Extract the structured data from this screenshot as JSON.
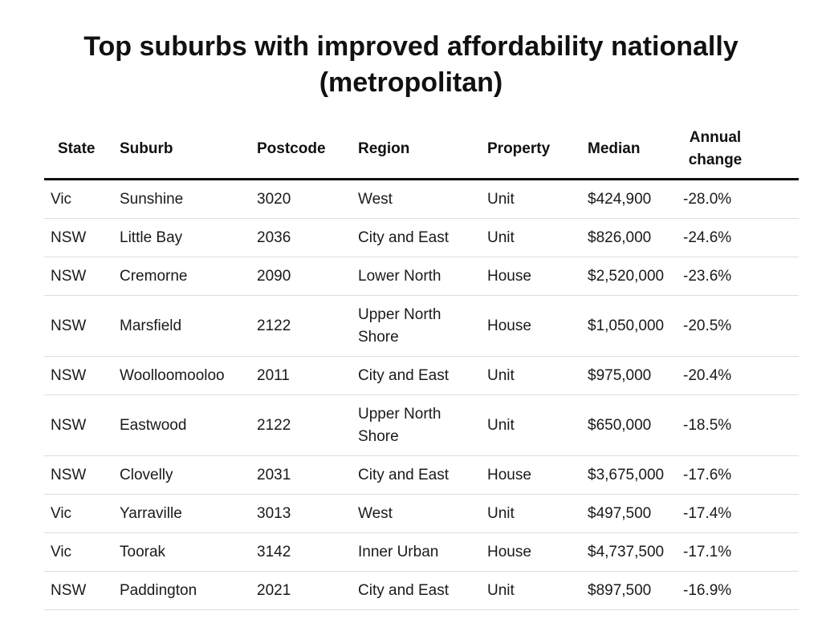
{
  "title_line1": "Top suburbs with improved affordability nationally",
  "title_line2": "(metropolitan)",
  "table": {
    "headers": [
      "State",
      "Suburb",
      "Postcode",
      "Region",
      "Property",
      "Median",
      "Annual change"
    ],
    "rows": [
      [
        "Vic",
        "Sunshine",
        "3020",
        "West",
        "Unit",
        "$424,900",
        "-28.0%"
      ],
      [
        "NSW",
        "Little Bay",
        "2036",
        "City and East",
        "Unit",
        "$826,000",
        "-24.6%"
      ],
      [
        "NSW",
        "Cremorne",
        "2090",
        "Lower North",
        "House",
        "$2,520,000",
        "-23.6%"
      ],
      [
        "NSW",
        "Marsfield",
        "2122",
        "Upper North Shore",
        "House",
        "$1,050,000",
        "-20.5%"
      ],
      [
        "NSW",
        "Woolloomooloo",
        "2011",
        "City and East",
        "Unit",
        "$975,000",
        "-20.4%"
      ],
      [
        "NSW",
        "Eastwood",
        "2122",
        "Upper North Shore",
        "Unit",
        "$650,000",
        "-18.5%"
      ],
      [
        "NSW",
        "Clovelly",
        "2031",
        "City and East",
        "House",
        "$3,675,000",
        "-17.6%"
      ],
      [
        "Vic",
        "Yarraville",
        "3013",
        "West",
        "Unit",
        "$497,500",
        "-17.4%"
      ],
      [
        "Vic",
        "Toorak",
        "3142",
        "Inner Urban",
        "House",
        "$4,737,500",
        "-17.1%"
      ],
      [
        "NSW",
        "Paddington",
        "2021",
        "City and East",
        "Unit",
        "$897,500",
        "-16.9%"
      ]
    ]
  }
}
